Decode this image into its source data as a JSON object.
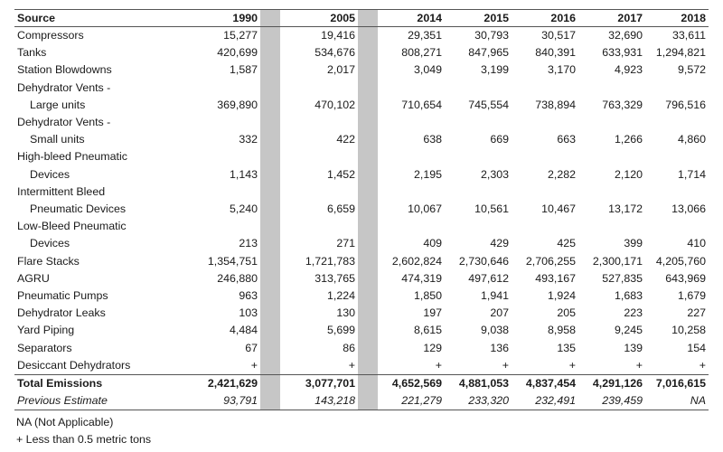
{
  "header": {
    "source": "Source",
    "years": [
      "1990",
      "2005",
      "2014",
      "2015",
      "2016",
      "2017",
      "2018"
    ]
  },
  "rows": [
    {
      "lines": [
        "Compressors"
      ],
      "values": [
        "15,277",
        "19,416",
        "29,351",
        "30,793",
        "30,517",
        "32,690",
        "33,611"
      ]
    },
    {
      "lines": [
        "Tanks"
      ],
      "values": [
        "420,699",
        "534,676",
        "808,271",
        "847,965",
        "840,391",
        "633,931",
        "1,294,821"
      ]
    },
    {
      "lines": [
        "Station Blowdowns"
      ],
      "values": [
        "1,587",
        "2,017",
        "3,049",
        "3,199",
        "3,170",
        "4,923",
        "9,572"
      ]
    },
    {
      "lines": [
        "Dehydrator Vents -",
        "Large units"
      ],
      "values": [
        "369,890",
        "470,102",
        "710,654",
        "745,554",
        "738,894",
        "763,329",
        "796,516"
      ]
    },
    {
      "lines": [
        "Dehydrator Vents -",
        "Small units"
      ],
      "values": [
        "332",
        "422",
        "638",
        "669",
        "663",
        "1,266",
        "4,860"
      ]
    },
    {
      "lines": [
        "High-bleed Pneumatic",
        "Devices"
      ],
      "values": [
        "1,143",
        "1,452",
        "2,195",
        "2,303",
        "2,282",
        "2,120",
        "1,714"
      ]
    },
    {
      "lines": [
        "Intermittent Bleed",
        "Pneumatic Devices"
      ],
      "values": [
        "5,240",
        "6,659",
        "10,067",
        "10,561",
        "10,467",
        "13,172",
        "13,066"
      ]
    },
    {
      "lines": [
        "Low-Bleed Pneumatic",
        "Devices"
      ],
      "values": [
        "213",
        "271",
        "409",
        "429",
        "425",
        "399",
        "410"
      ]
    },
    {
      "lines": [
        "Flare Stacks"
      ],
      "values": [
        "1,354,751",
        "1,721,783",
        "2,602,824",
        "2,730,646",
        "2,706,255",
        "2,300,171",
        "4,205,760"
      ]
    },
    {
      "lines": [
        "AGRU"
      ],
      "values": [
        "246,880",
        "313,765",
        "474,319",
        "497,612",
        "493,167",
        "527,835",
        "643,969"
      ]
    },
    {
      "lines": [
        "Pneumatic Pumps"
      ],
      "values": [
        "963",
        "1,224",
        "1,850",
        "1,941",
        "1,924",
        "1,683",
        "1,679"
      ]
    },
    {
      "lines": [
        "Dehydrator Leaks"
      ],
      "values": [
        "103",
        "130",
        "197",
        "207",
        "205",
        "223",
        "227"
      ]
    },
    {
      "lines": [
        "Yard Piping"
      ],
      "values": [
        "4,484",
        "5,699",
        "8,615",
        "9,038",
        "8,958",
        "9,245",
        "10,258"
      ]
    },
    {
      "lines": [
        "Separators"
      ],
      "values": [
        "67",
        "86",
        "129",
        "136",
        "135",
        "139",
        "154"
      ]
    },
    {
      "lines": [
        "Desiccant Dehydrators"
      ],
      "values": [
        "+",
        "+",
        "+",
        "+",
        "+",
        "+",
        "+"
      ]
    }
  ],
  "total": {
    "label": "Total Emissions",
    "values": [
      "2,421,629",
      "3,077,701",
      "4,652,569",
      "4,881,053",
      "4,837,454",
      "4,291,126",
      "7,016,615"
    ]
  },
  "previous": {
    "label": "Previous Estimate",
    "values": [
      "93,791",
      "143,218",
      "221,279",
      "233,320",
      "232,491",
      "239,459",
      "NA"
    ]
  },
  "notes": [
    "NA (Not Applicable)",
    "+ Less than 0.5 metric tons"
  ]
}
